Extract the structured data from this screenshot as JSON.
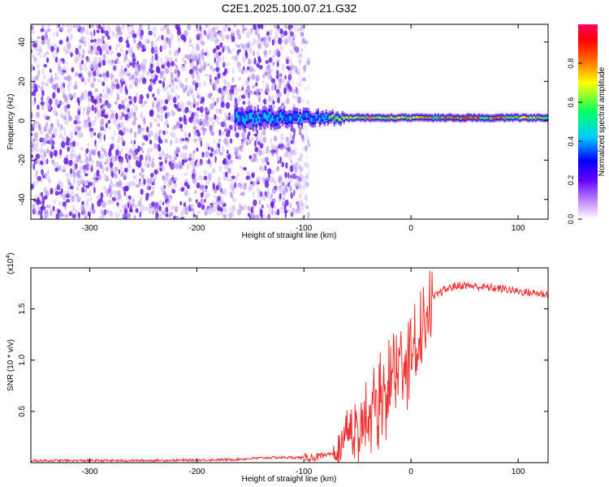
{
  "title": "C2E1.2025.100.07.21.G32",
  "chart_data": [
    {
      "type": "heatmap",
      "title": "C2E1.2025.100.07.21.G32",
      "xlabel": "Height of straight line (km)",
      "ylabel": "Frequency (Hz)",
      "xlim": [
        -355,
        128
      ],
      "ylim": [
        -50,
        49
      ],
      "x_ticks": [
        "-300",
        "-200",
        "-100",
        "0",
        "100"
      ],
      "y_ticks": [
        "40",
        "20",
        "0",
        "-20",
        "-40"
      ],
      "colorbar": {
        "label": "Normalized spectral amplitude",
        "range": [
          0,
          1
        ],
        "ticks": [
          "0.0",
          "0.2",
          "0.4",
          "0.6",
          "0.8"
        ],
        "colors": [
          "#ffffff",
          "#cc99ff",
          "#6600ff",
          "#0000ff",
          "#00ccff",
          "#00ff66",
          "#ffff00",
          "#ff6600",
          "#ff0000",
          "#ff0066"
        ]
      },
      "structure": {
        "noise_region_x": [
          -355,
          -95
        ],
        "signal_center_freq_hz": 1.5,
        "signal_onset_x": -165
      }
    },
    {
      "type": "line",
      "xlabel": "Height of straight line (km)",
      "ylabel": "SNR (10 * v/v)",
      "multiplier_label": "(x10",
      "multiplier_exp": "4",
      "multiplier_close": ")",
      "xlim": [
        -355,
        128
      ],
      "ylim": [
        0,
        1.9
      ],
      "x_ticks": [
        "-300",
        "-200",
        "-100",
        "0",
        "100"
      ],
      "y_ticks": [
        "1.5",
        "1.0",
        "0.5"
      ],
      "color": "#ee3333",
      "x": [
        -355,
        -300,
        -250,
        -200,
        -165,
        -150,
        -130,
        -110,
        -95,
        -80,
        -70,
        -60,
        -50,
        -40,
        -30,
        -20,
        -10,
        0,
        10,
        20,
        30,
        40,
        50,
        60,
        70,
        80,
        90,
        100,
        110,
        128
      ],
      "values": [
        0.02,
        0.02,
        0.02,
        0.025,
        0.03,
        0.04,
        0.05,
        0.05,
        0.05,
        0.06,
        0.12,
        0.35,
        0.45,
        0.55,
        0.7,
        0.9,
        1.05,
        1.15,
        1.35,
        1.6,
        1.68,
        1.72,
        1.73,
        1.72,
        1.71,
        1.7,
        1.69,
        1.67,
        1.66,
        1.64
      ]
    }
  ]
}
